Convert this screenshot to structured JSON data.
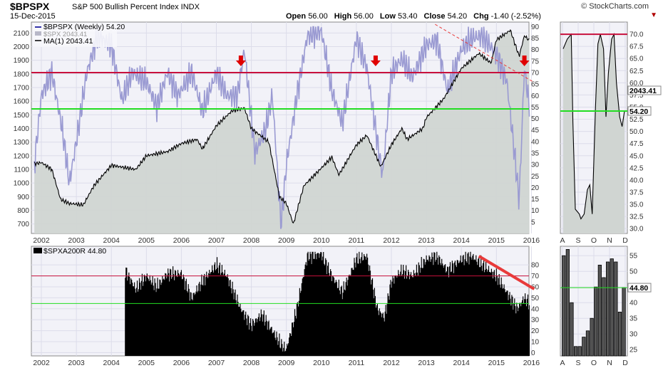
{
  "header": {
    "symbol": "$BPSPX",
    "description": "S&P 500 Bullish Percent Index  INDX",
    "date": "15-Dec-2015",
    "open_label": "Open",
    "open": "56.00",
    "high_label": "High",
    "high": "56.00",
    "low_label": "Low",
    "low": "53.40",
    "close_label": "Close",
    "close": "54.20",
    "chg_label": "Chg",
    "chg": "-1.40 (-2.52%)",
    "brand": "© StockCharts.com"
  },
  "colors": {
    "bpspx_line": "#9a9ad2",
    "spx_fill": "#d0d5d2",
    "spx_line": "#000000",
    "red_line": "#c8103c",
    "green_line": "#22dd22",
    "trend_red": "#e83a3a",
    "panel_bg": "#f2f2f8",
    "bar": "#000000"
  },
  "chart_data": [
    {
      "type": "line",
      "panel": "main-weekly",
      "legend": [
        "$BPSPX (Weekly) 54.20",
        "$SPX 2043.41",
        "MA(1) 2043.41"
      ],
      "x_ticks": [
        "2002",
        "2003",
        "2004",
        "2005",
        "2006",
        "2007",
        "2008",
        "2009",
        "2010",
        "2011",
        "2012",
        "2013",
        "2014",
        "2015",
        "2016"
      ],
      "left_axis_ticks": [
        700,
        800,
        900,
        1000,
        1100,
        1200,
        1300,
        1400,
        1500,
        1600,
        1700,
        1800,
        1900,
        2000,
        2100
      ],
      "right_axis_ticks": [
        5,
        10,
        15,
        20,
        25,
        30,
        35,
        40,
        45,
        50,
        55,
        60,
        65,
        70,
        75,
        80,
        85,
        90
      ],
      "left_ylim": [
        630,
        2180
      ],
      "right_ylim": [
        0,
        92
      ],
      "horizontal_lines": [
        {
          "value": 70,
          "color": "red"
        },
        {
          "value": 54.2,
          "color": "green"
        }
      ],
      "down_arrows_years": [
        2007.7,
        2011.55,
        2015.8
      ],
      "series": [
        {
          "name": "$SPX",
          "axis": "left",
          "x": [
            2001.8,
            2002.0,
            2002.3,
            2002.55,
            2002.8,
            2003.2,
            2003.5,
            2004.0,
            2004.7,
            2005.0,
            2005.6,
            2006.0,
            2006.45,
            2006.6,
            2007.0,
            2007.45,
            2007.8,
            2008.0,
            2008.5,
            2008.8,
            2009.0,
            2009.2,
            2009.5,
            2010.0,
            2010.3,
            2010.5,
            2011.0,
            2011.3,
            2011.7,
            2012.0,
            2012.3,
            2012.45,
            2012.9,
            2013.0,
            2013.5,
            2014.0,
            2014.5,
            2014.85,
            2015.0,
            2015.4,
            2015.65,
            2015.8,
            2015.95
          ],
          "values": [
            1140,
            1150,
            1100,
            880,
            850,
            840,
            980,
            1130,
            1100,
            1200,
            1230,
            1290,
            1320,
            1250,
            1420,
            1530,
            1550,
            1400,
            1300,
            900,
            850,
            700,
            980,
            1110,
            1190,
            1060,
            1280,
            1350,
            1120,
            1280,
            1400,
            1320,
            1400,
            1480,
            1620,
            1840,
            1950,
            1880,
            2050,
            2120,
            1930,
            2080,
            2043
          ]
        },
        {
          "name": "$BPSPX",
          "axis": "right",
          "x": [
            2001.8,
            2002.0,
            2002.3,
            2002.6,
            2002.8,
            2003.0,
            2003.3,
            2003.6,
            2004.0,
            2004.3,
            2004.6,
            2005.0,
            2005.3,
            2005.6,
            2005.9,
            2006.3,
            2006.6,
            2007.0,
            2007.3,
            2007.6,
            2007.8,
            2008.1,
            2008.4,
            2008.6,
            2008.85,
            2009.0,
            2009.3,
            2009.6,
            2010.0,
            2010.3,
            2010.6,
            2011.0,
            2011.3,
            2011.6,
            2011.75,
            2012.0,
            2012.3,
            2012.6,
            2013.0,
            2013.3,
            2013.6,
            2014.0,
            2014.3,
            2014.6,
            2015.0,
            2015.3,
            2015.55,
            2015.65,
            2015.8,
            2015.95
          ],
          "values": [
            30,
            60,
            70,
            45,
            22,
            40,
            70,
            86,
            82,
            58,
            70,
            66,
            55,
            70,
            60,
            70,
            53,
            70,
            60,
            60,
            80,
            35,
            45,
            60,
            3,
            30,
            60,
            86,
            88,
            62,
            48,
            85,
            72,
            40,
            25,
            70,
            76,
            68,
            82,
            84,
            62,
            80,
            85,
            86,
            78,
            66,
            30,
            14,
            72,
            54.2
          ]
        }
      ]
    },
    {
      "type": "line",
      "panel": "main-zoom",
      "x_ticks": [
        "A",
        "S",
        "O",
        "N",
        "D"
      ],
      "right_axis_ticks": [
        30.0,
        32.5,
        35.0,
        37.5,
        40.0,
        42.5,
        45.0,
        47.5,
        50.0,
        52.5,
        55.0,
        57.5,
        60.0,
        62.5,
        65.0,
        67.5,
        70.0
      ],
      "ylim": [
        29,
        72.5
      ],
      "price_labels": [
        "2043.41",
        "54.20"
      ],
      "horizontal_lines": [
        {
          "value": 70,
          "color": "red"
        },
        {
          "value": 54.2,
          "color": "green"
        }
      ],
      "series": [
        {
          "name": "$BPSPX",
          "x": [
            0,
            0.5,
            1,
            1.2,
            1.5,
            2,
            2.2,
            2.6,
            3,
            3.3,
            3.6,
            4,
            4.3,
            4.6,
            5,
            5.3,
            5.6,
            6,
            6.3,
            6.6,
            7,
            7.3,
            7.6
          ],
          "values": [
            67,
            69,
            70,
            52,
            34,
            33,
            32,
            33,
            38,
            39,
            33,
            55,
            68,
            70,
            67,
            53,
            62,
            69,
            70,
            60,
            53,
            51,
            54.2
          ]
        }
      ]
    },
    {
      "type": "bar",
      "panel": "lower-weekly",
      "legend": [
        "$SPXA200R 44.80"
      ],
      "x_ticks": [
        "2002",
        "2003",
        "2004",
        "2005",
        "2006",
        "2007",
        "2008",
        "2009",
        "2010",
        "2011",
        "2012",
        "2013",
        "2014",
        "2015",
        "2016"
      ],
      "right_axis_ticks": [
        0,
        10,
        20,
        30,
        40,
        50,
        60,
        70,
        80
      ],
      "ylim": [
        -3,
        97
      ],
      "horizontal_lines": [
        {
          "value": 70,
          "color": "red"
        },
        {
          "value": 44.8,
          "color": "green"
        }
      ],
      "x": [
        2004.4,
        2004.7,
        2005.0,
        2005.3,
        2005.6,
        2006.0,
        2006.3,
        2006.6,
        2007.0,
        2007.3,
        2007.5,
        2007.7,
        2008.0,
        2008.3,
        2008.6,
        2008.9,
        2009.0,
        2009.3,
        2009.6,
        2010.0,
        2010.3,
        2010.6,
        2011.0,
        2011.3,
        2011.6,
        2011.8,
        2012.0,
        2012.3,
        2012.6,
        2013.0,
        2013.3,
        2013.6,
        2014.0,
        2014.3,
        2014.6,
        2015.0,
        2015.3,
        2015.6,
        2015.8,
        2015.95
      ],
      "values": [
        75,
        58,
        70,
        60,
        72,
        72,
        50,
        65,
        80,
        70,
        55,
        40,
        25,
        35,
        20,
        5,
        3,
        40,
        88,
        90,
        70,
        55,
        85,
        88,
        40,
        32,
        65,
        75,
        70,
        85,
        88,
        75,
        85,
        88,
        80,
        70,
        55,
        40,
        50,
        44.8
      ]
    },
    {
      "type": "bar",
      "panel": "lower-zoom",
      "x_ticks": [
        "A",
        "S",
        "O",
        "N",
        "D"
      ],
      "right_axis_ticks": [
        25,
        30,
        35,
        40,
        45,
        50,
        55
      ],
      "ylim": [
        23,
        58
      ],
      "price_label": "44.80",
      "horizontal_lines": [
        {
          "value": 44.8,
          "color": "green"
        }
      ],
      "values": [
        55,
        57,
        40,
        26,
        26,
        29,
        31,
        35,
        45,
        52,
        48,
        53,
        54,
        53,
        37,
        44.8
      ]
    }
  ],
  "trend_main": {
    "from": [
      2013.25,
      91
    ],
    "to": [
      2016.05,
      66
    ]
  },
  "trend_lower": {
    "from": [
      2014.5,
      88
    ],
    "to": [
      2016.08,
      58
    ]
  }
}
